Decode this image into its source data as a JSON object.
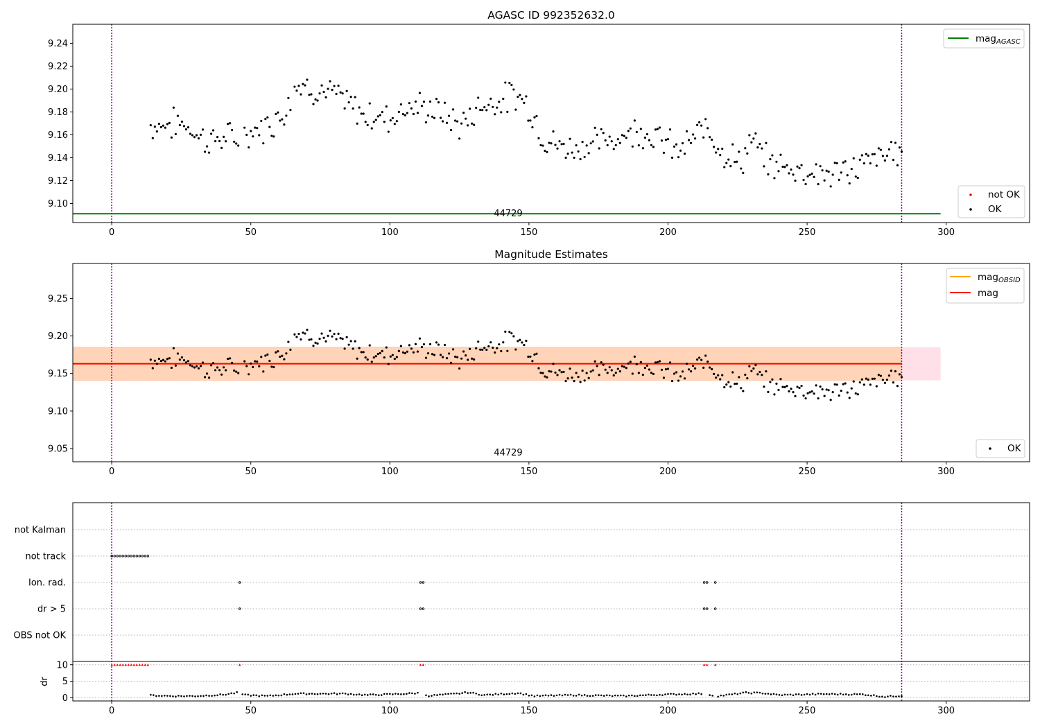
{
  "chart_data": [
    {
      "type": "scatter",
      "title": "AGASC ID 992352632.0",
      "annotation": "44729",
      "xlim": [
        -14,
        330
      ],
      "ylim": [
        9.0833,
        9.2566
      ],
      "xticks": [
        "0",
        "50",
        "100",
        "150",
        "200",
        "250",
        "300"
      ],
      "yticks": [
        "9.10",
        "9.12",
        "9.14",
        "9.16",
        "9.18",
        "9.20",
        "9.22",
        "9.24"
      ],
      "vlines": [
        0,
        284
      ],
      "hline": {
        "name": "mag_AGASC",
        "value": 9.091,
        "x_range": [
          -14,
          298
        ],
        "color": "#008000"
      },
      "legend_top": [
        {
          "label": "mag",
          "sub": "AGASC",
          "color": "#008000"
        }
      ],
      "legend_bottom": [
        {
          "label": "not OK",
          "color": "#ff0000"
        },
        {
          "label": "OK",
          "color": "#000000"
        }
      ],
      "series": [
        {
          "name": "OK",
          "color": "#000000",
          "profile": [
            [
              14,
              9.168
            ],
            [
              26,
              9.17
            ],
            [
              34,
              9.155
            ],
            [
              46,
              9.158
            ],
            [
              56,
              9.168
            ],
            [
              62,
              9.18
            ],
            [
              66,
              9.205
            ],
            [
              80,
              9.195
            ],
            [
              90,
              9.178
            ],
            [
              100,
              9.175
            ],
            [
              106,
              9.185
            ],
            [
              116,
              9.182
            ],
            [
              126,
              9.168
            ],
            [
              132,
              9.185
            ],
            [
              146,
              9.195
            ],
            [
              150,
              9.185
            ],
            [
              156,
              9.155
            ],
            [
              164,
              9.148
            ],
            [
              178,
              9.155
            ],
            [
              190,
              9.165
            ],
            [
              198,
              9.155
            ],
            [
              204,
              9.145
            ],
            [
              210,
              9.158
            ],
            [
              214,
              9.168
            ],
            [
              220,
              9.145
            ],
            [
              226,
              9.135
            ],
            [
              230,
              9.155
            ],
            [
              236,
              9.135
            ],
            [
              246,
              9.13
            ],
            [
              258,
              9.125
            ],
            [
              266,
              9.13
            ],
            [
              276,
              9.14
            ],
            [
              284,
              9.148
            ]
          ]
        }
      ]
    },
    {
      "type": "scatter",
      "title": "Magnitude Estimates",
      "annotation": "44729",
      "xlim": [
        -14,
        330
      ],
      "ylim": [
        9.0325,
        9.2965
      ],
      "xticks": [
        "0",
        "50",
        "100",
        "150",
        "200",
        "250",
        "300"
      ],
      "yticks": [
        "9.05",
        "9.10",
        "9.15",
        "9.20",
        "9.25"
      ],
      "vlines": [
        0,
        284
      ],
      "mag_line": {
        "name": "mag",
        "value": 9.163,
        "color": "#ff0000"
      },
      "mag_band": {
        "low": 9.141,
        "high": 9.185,
        "x_range": [
          -14,
          298
        ],
        "fill": "#ffe0e8"
      },
      "mag_obsid_band": {
        "low": 9.141,
        "high": 9.185,
        "x_range": [
          -14,
          284
        ],
        "fill": "#ffd4b8"
      },
      "legend_top": [
        {
          "label": "mag",
          "sub": "OBSID",
          "color": "#ffa500"
        },
        {
          "label": "mag",
          "sub": "",
          "color": "#ff0000"
        }
      ],
      "legend_bottom": [
        {
          "label": "OK",
          "color": "#000000"
        }
      ],
      "series": [
        {
          "name": "OK",
          "color": "#000000"
        }
      ]
    },
    {
      "type": "scatter",
      "xlim": [
        -14,
        330
      ],
      "xticks": [
        "0",
        "50",
        "100",
        "150",
        "200",
        "250",
        "300"
      ],
      "vlines": [
        0,
        284
      ],
      "flag_categories": [
        "not Kalman",
        "not track",
        "Ion. rad.",
        "dr > 5",
        "OBS not OK"
      ],
      "flag_points": {
        "not track": [
          0,
          1,
          2,
          3,
          4,
          5,
          6,
          7,
          8,
          9,
          10,
          11,
          12,
          13
        ],
        "Ion. rad.": [
          46,
          111,
          112,
          213,
          214,
          217
        ],
        "dr > 5": [
          46,
          111,
          112,
          213,
          214,
          217
        ]
      },
      "dr_ylabel": "dr",
      "dr_ylim": [
        -1,
        11
      ],
      "dr_yticks": [
        "0",
        "5",
        "10"
      ],
      "dr_clipped": {
        "value": 10,
        "color": "#ff0000",
        "x": [
          0,
          1,
          2,
          3,
          4,
          5,
          6,
          7,
          8,
          9,
          10,
          11,
          12,
          13,
          46,
          111,
          112,
          213,
          214,
          217
        ]
      },
      "dr_profile": [
        [
          14,
          0.7
        ],
        [
          22,
          0.5
        ],
        [
          30,
          0.5
        ],
        [
          40,
          0.9
        ],
        [
          45,
          1.5
        ],
        [
          48,
          0.8
        ],
        [
          56,
          0.5
        ],
        [
          66,
          1.2
        ],
        [
          84,
          1.2
        ],
        [
          92,
          0.8
        ],
        [
          106,
          1.2
        ],
        [
          110,
          1.4
        ],
        [
          114,
          0.6
        ],
        [
          124,
          1.2
        ],
        [
          128,
          1.6
        ],
        [
          134,
          0.8
        ],
        [
          146,
          1.4
        ],
        [
          152,
          0.5
        ],
        [
          166,
          0.8
        ],
        [
          184,
          0.5
        ],
        [
          200,
          1.0
        ],
        [
          212,
          1.2
        ],
        [
          218,
          0.5
        ],
        [
          228,
          1.5
        ],
        [
          234,
          1.4
        ],
        [
          240,
          0.8
        ],
        [
          256,
          1.1
        ],
        [
          270,
          1.0
        ],
        [
          278,
          0.3
        ],
        [
          284,
          0.6
        ]
      ]
    }
  ]
}
